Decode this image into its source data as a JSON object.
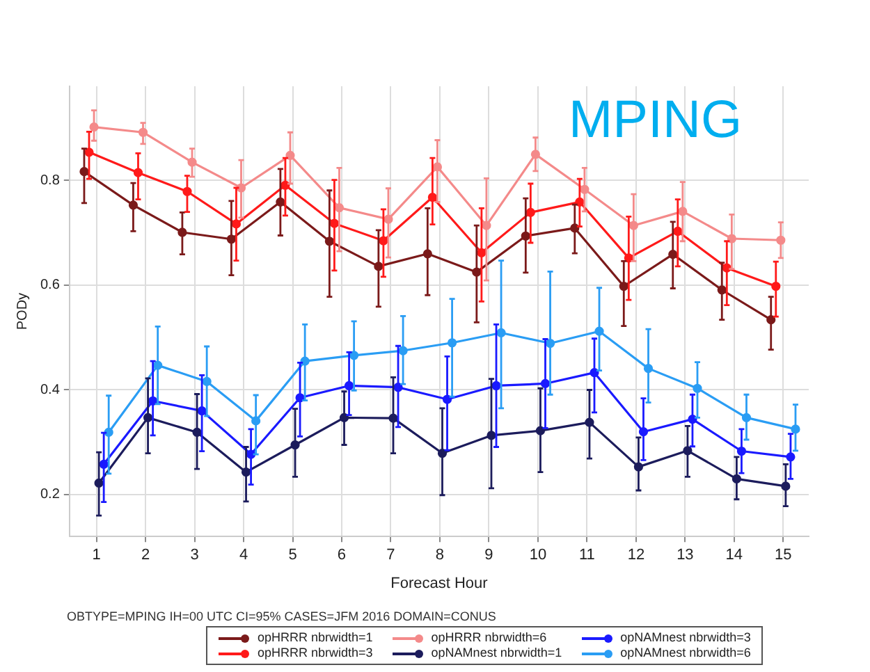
{
  "chart_data": {
    "type": "line",
    "xlabel": "Forecast Hour",
    "ylabel": "PODy",
    "annotations": [
      "MPING",
      "OBTYPE=MPING  IH=00 UTC  CI=95%  CASES=JFM 2016  DOMAIN=CONUS"
    ],
    "xlim": [
      0.45,
      15.52
    ],
    "xticks": [
      1,
      2,
      3,
      4,
      5,
      6,
      7,
      8,
      9,
      10,
      11,
      12,
      13,
      14,
      15
    ],
    "ylim": [
      0.12,
      0.98
    ],
    "yticks": [
      0.2,
      0.4,
      0.6,
      0.8
    ],
    "grid": true,
    "legend": "bottom",
    "marker": "circle",
    "line_style": "solid",
    "series": [
      {
        "name": "opHRRR nbrwidth=1",
        "color": "#7b1a1a",
        "x": [
          0.75,
          1.75,
          2.75,
          3.75,
          4.75,
          5.75,
          6.75,
          7.75,
          8.75,
          9.75,
          10.75,
          11.75,
          12.75,
          13.75,
          14.75
        ],
        "values": [
          0.817,
          0.753,
          0.701,
          0.688,
          0.759,
          0.684,
          0.636,
          0.66,
          0.625,
          0.694,
          0.709,
          0.598,
          0.659,
          0.591,
          0.534
        ],
        "errors": [
          [
            0.757,
            0.861
          ],
          [
            0.703,
            0.795
          ],
          [
            0.659,
            0.739
          ],
          [
            0.619,
            0.761
          ],
          [
            0.695,
            0.822
          ],
          [
            0.578,
            0.781
          ],
          [
            0.559,
            0.705
          ],
          [
            0.581,
            0.747
          ],
          [
            0.529,
            0.714
          ],
          [
            0.624,
            0.766
          ],
          [
            0.661,
            0.754
          ],
          [
            0.522,
            0.646
          ],
          [
            0.594,
            0.721
          ],
          [
            0.534,
            0.643
          ],
          [
            0.477,
            0.578
          ]
        ]
      },
      {
        "name": "opHRRR nbrwidth=3",
        "color": "#ff1a1a",
        "x": [
          0.85,
          1.85,
          2.85,
          3.85,
          4.85,
          5.85,
          6.85,
          7.85,
          8.85,
          9.85,
          10.85,
          11.85,
          12.85,
          13.85,
          14.85
        ],
        "values": [
          0.854,
          0.815,
          0.779,
          0.717,
          0.791,
          0.718,
          0.685,
          0.768,
          0.662,
          0.739,
          0.759,
          0.652,
          0.703,
          0.633,
          0.598
        ],
        "errors": [
          [
            0.803,
            0.893
          ],
          [
            0.764,
            0.852
          ],
          [
            0.74,
            0.809
          ],
          [
            0.647,
            0.786
          ],
          [
            0.733,
            0.843
          ],
          [
            0.628,
            0.801
          ],
          [
            0.616,
            0.745
          ],
          [
            0.716,
            0.843
          ],
          [
            0.569,
            0.747
          ],
          [
            0.681,
            0.794
          ],
          [
            0.712,
            0.803
          ],
          [
            0.572,
            0.731
          ],
          [
            0.636,
            0.764
          ],
          [
            0.562,
            0.684
          ],
          [
            0.54,
            0.645
          ]
        ]
      },
      {
        "name": "opHRRR nbrwidth=6",
        "color": "#f48a8a",
        "x": [
          0.95,
          1.95,
          2.95,
          3.95,
          4.95,
          5.95,
          6.95,
          7.95,
          8.95,
          9.95,
          10.95,
          11.95,
          12.95,
          13.95,
          14.95
        ],
        "values": [
          0.902,
          0.892,
          0.835,
          0.786,
          0.848,
          0.748,
          0.726,
          0.826,
          0.714,
          0.85,
          0.783,
          0.714,
          0.741,
          0.689,
          0.686
        ],
        "errors": [
          [
            0.876,
            0.934
          ],
          [
            0.87,
            0.91
          ],
          [
            0.807,
            0.861
          ],
          [
            0.729,
            0.839
          ],
          [
            0.794,
            0.892
          ],
          [
            0.665,
            0.824
          ],
          [
            0.653,
            0.785
          ],
          [
            0.759,
            0.877
          ],
          [
            0.609,
            0.804
          ],
          [
            0.818,
            0.882
          ],
          [
            0.741,
            0.824
          ],
          [
            0.646,
            0.774
          ],
          [
            0.684,
            0.797
          ],
          [
            0.631,
            0.735
          ],
          [
            0.652,
            0.72
          ]
        ]
      },
      {
        "name": "opNAMnest nbrwidth=1",
        "color": "#1c1c5c",
        "x": [
          1.05,
          2.05,
          3.05,
          4.05,
          5.05,
          6.05,
          7.05,
          8.05,
          9.05,
          10.05,
          11.05,
          12.05,
          13.05,
          14.05,
          15.05
        ],
        "values": [
          0.222,
          0.347,
          0.319,
          0.243,
          0.295,
          0.347,
          0.346,
          0.279,
          0.313,
          0.322,
          0.338,
          0.253,
          0.284,
          0.23,
          0.216
        ],
        "errors": [
          [
            0.16,
            0.281
          ],
          [
            0.279,
            0.422
          ],
          [
            0.249,
            0.392
          ],
          [
            0.187,
            0.291
          ],
          [
            0.234,
            0.364
          ],
          [
            0.295,
            0.397
          ],
          [
            0.279,
            0.424
          ],
          [
            0.199,
            0.365
          ],
          [
            0.212,
            0.421
          ],
          [
            0.243,
            0.403
          ],
          [
            0.269,
            0.4
          ],
          [
            0.208,
            0.309
          ],
          [
            0.234,
            0.331
          ],
          [
            0.191,
            0.272
          ],
          [
            0.178,
            0.258
          ]
        ]
      },
      {
        "name": "opNAMnest nbrwidth=3",
        "color": "#1a1aff",
        "x": [
          1.15,
          2.15,
          3.15,
          4.15,
          5.15,
          6.15,
          7.15,
          8.15,
          9.15,
          10.15,
          11.15,
          12.15,
          13.15,
          14.15,
          15.15
        ],
        "values": [
          0.258,
          0.379,
          0.36,
          0.277,
          0.385,
          0.408,
          0.405,
          0.382,
          0.408,
          0.412,
          0.433,
          0.32,
          0.344,
          0.283,
          0.272
        ],
        "errors": [
          [
            0.186,
            0.318
          ],
          [
            0.313,
            0.455
          ],
          [
            0.283,
            0.428
          ],
          [
            0.219,
            0.325
          ],
          [
            0.311,
            0.452
          ],
          [
            0.352,
            0.472
          ],
          [
            0.329,
            0.484
          ],
          [
            0.285,
            0.464
          ],
          [
            0.291,
            0.525
          ],
          [
            0.327,
            0.497
          ],
          [
            0.357,
            0.498
          ],
          [
            0.266,
            0.384
          ],
          [
            0.292,
            0.391
          ],
          [
            0.241,
            0.325
          ],
          [
            0.23,
            0.316
          ]
        ]
      },
      {
        "name": "opNAMnest nbrwidth=6",
        "color": "#2a9df4",
        "x": [
          1.25,
          2.25,
          3.25,
          4.25,
          5.25,
          6.25,
          7.25,
          8.25,
          9.25,
          10.25,
          11.25,
          12.25,
          13.25,
          14.25,
          15.25
        ],
        "values": [
          0.319,
          0.447,
          0.416,
          0.341,
          0.455,
          0.466,
          0.475,
          0.49,
          0.509,
          0.489,
          0.512,
          0.441,
          0.403,
          0.347,
          0.325
        ],
        "errors": [
          [
            0.24,
            0.389
          ],
          [
            0.373,
            0.521
          ],
          [
            0.35,
            0.483
          ],
          [
            0.277,
            0.39
          ],
          [
            0.38,
            0.525
          ],
          [
            0.399,
            0.531
          ],
          [
            0.411,
            0.541
          ],
          [
            0.387,
            0.574
          ],
          [
            0.365,
            0.647
          ],
          [
            0.391,
            0.626
          ],
          [
            0.437,
            0.595
          ],
          [
            0.376,
            0.516
          ],
          [
            0.347,
            0.453
          ],
          [
            0.305,
            0.391
          ],
          [
            0.284,
            0.372
          ]
        ]
      }
    ]
  }
}
